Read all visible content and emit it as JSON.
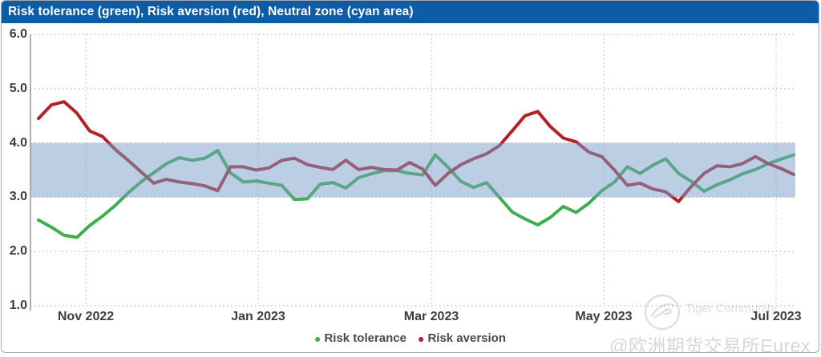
{
  "header": {
    "title": "Risk tolerance (green), Risk aversion (red), Neutral zone (cyan area)",
    "bg_color": "#0d5ca8"
  },
  "chart_data": {
    "type": "line",
    "title": "Risk tolerance (green), Risk aversion (red), Neutral zone (cyan area)",
    "ylim": [
      1.0,
      6.0
    ],
    "y_tick_values": [
      6.0,
      5.0,
      4.0,
      3.0,
      2.0,
      1.0
    ],
    "y_tick_labels": [
      "6.0",
      "5.0",
      "4.0",
      "3.0",
      "2.0",
      "1.0"
    ],
    "x_tick_labels": [
      "Nov 2022",
      "Jan 2023",
      "Mar 2023",
      "May 2023",
      "Jul 2023"
    ],
    "x_range_note": "daily values from mid-Oct 2022 to mid-Jul 2023, sampled ~weekly",
    "grid": "dotted",
    "neutral_zone": {
      "label": "Neutral zone (cyan area)",
      "range": [
        3.0,
        4.0
      ],
      "color": "rgba(120,158,200,0.5)"
    },
    "series": [
      {
        "name": "Risk tolerance",
        "color": "#3fae4f",
        "values": [
          2.58,
          2.45,
          2.3,
          2.26,
          2.48,
          2.65,
          2.85,
          3.08,
          3.28,
          3.45,
          3.62,
          3.73,
          3.68,
          3.72,
          3.86,
          3.45,
          3.28,
          3.3,
          3.26,
          3.22,
          2.96,
          2.97,
          3.24,
          3.27,
          3.17,
          3.36,
          3.43,
          3.49,
          3.49,
          3.44,
          3.41,
          3.78,
          3.55,
          3.29,
          3.18,
          3.27,
          3.0,
          2.73,
          2.6,
          2.49,
          2.63,
          2.83,
          2.72,
          2.89,
          3.12,
          3.28,
          3.56,
          3.44,
          3.59,
          3.71,
          3.44,
          3.29,
          3.11,
          3.23,
          3.32,
          3.43,
          3.51,
          3.62,
          3.7,
          3.78
        ]
      },
      {
        "name": "Risk aversion",
        "color": "#b2222a",
        "values": [
          4.45,
          4.7,
          4.76,
          4.55,
          4.22,
          4.12,
          3.88,
          3.68,
          3.47,
          3.26,
          3.33,
          3.28,
          3.25,
          3.21,
          3.12,
          3.56,
          3.56,
          3.5,
          3.54,
          3.68,
          3.72,
          3.6,
          3.55,
          3.51,
          3.68,
          3.51,
          3.55,
          3.51,
          3.5,
          3.64,
          3.52,
          3.22,
          3.44,
          3.6,
          3.71,
          3.8,
          3.95,
          4.22,
          4.5,
          4.58,
          4.3,
          4.09,
          4.02,
          3.83,
          3.75,
          3.5,
          3.22,
          3.26,
          3.15,
          3.1,
          2.92,
          3.2,
          3.44,
          3.58,
          3.56,
          3.62,
          3.75,
          3.62,
          3.53,
          3.42
        ]
      }
    ],
    "legend_position": "bottom-center"
  },
  "legend": {
    "items": [
      {
        "label": "Risk tolerance",
        "color": "#3fae4f"
      },
      {
        "label": "Risk aversion",
        "color": "#b2222a"
      }
    ]
  },
  "watermark": {
    "community": "Tiger Community",
    "handle": "@欧洲期货交易所Eurex"
  }
}
